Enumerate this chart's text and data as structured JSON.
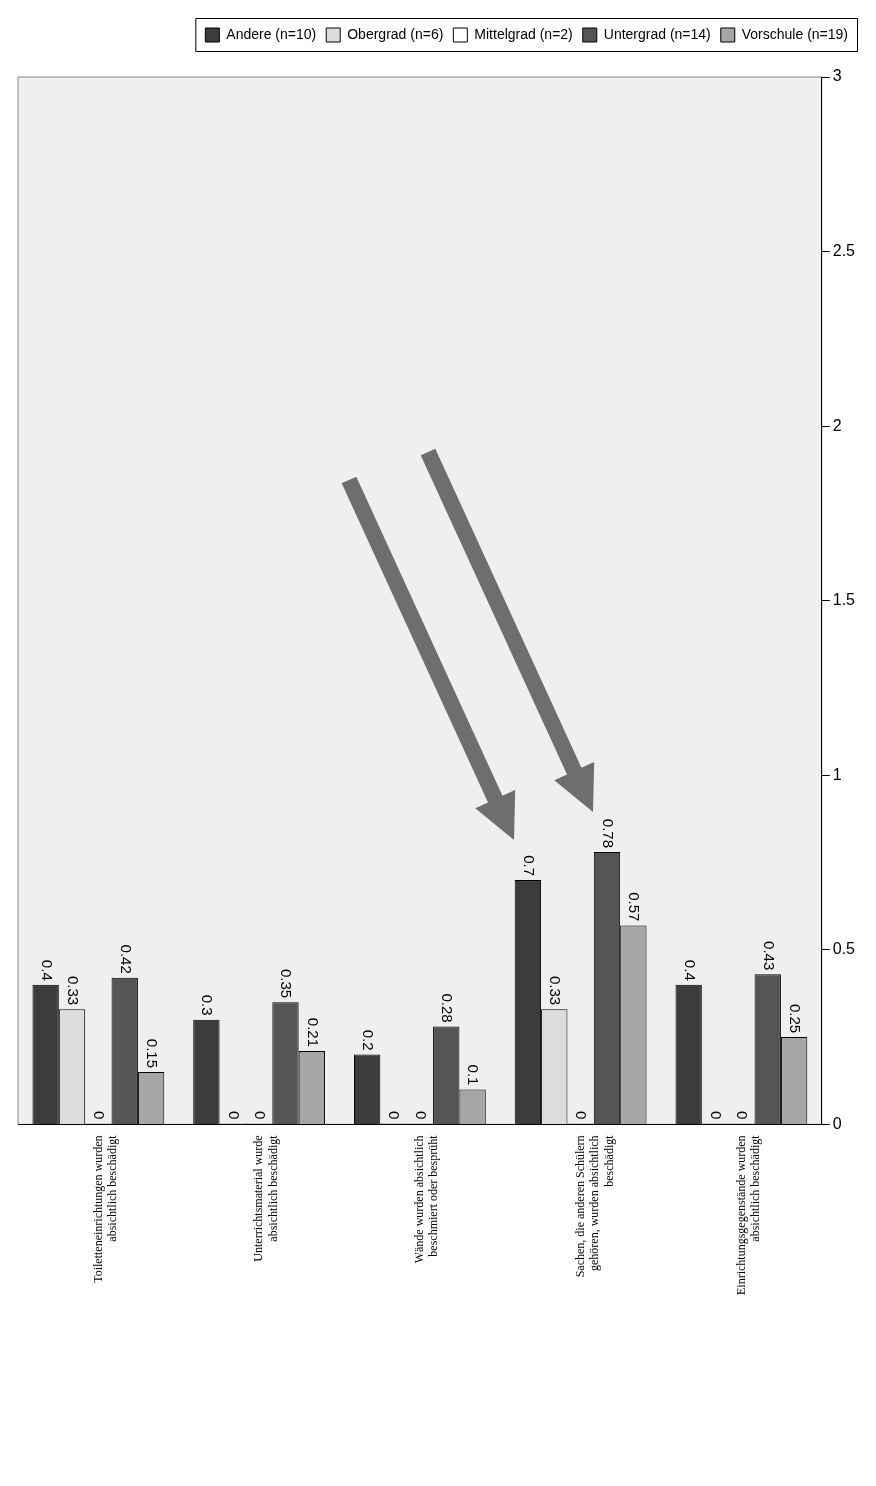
{
  "chart_data": {
    "type": "bar",
    "categories": [
      "Toiletteneinrichtungen wurden absichtlich beschädigt",
      "Unterrichtsmaterial wurde absichtlich beschädigt",
      "Wände wurden absichtlich beschmiert oder besprüht",
      "Sachen, die anderen Schülern gehören, wurden absichtlich beschädigt",
      "Einrichtungsgegenstände wurden absichtlich beschädigt"
    ],
    "series": [
      {
        "name": "Andere (n=10)",
        "color": "#3c3c3c",
        "values": [
          0.4,
          0.3,
          0.2,
          0.7,
          0.4
        ]
      },
      {
        "name": "Obergrad (n=6)",
        "color": "#dcdcdc",
        "values": [
          0.33,
          0,
          0,
          0.33,
          0
        ]
      },
      {
        "name": "Mittelgrad (n=2)",
        "color": "#ffffff",
        "values": [
          0,
          0,
          0,
          0,
          0
        ]
      },
      {
        "name": "Untergrad (n=14)",
        "color": "#555555",
        "values": [
          0.42,
          0.35,
          0.28,
          0.78,
          0.43
        ]
      },
      {
        "name": "Vorschule (n=19)",
        "color": "#a6a6a6",
        "values": [
          0.15,
          0.21,
          0.1,
          0.57,
          0.25
        ]
      }
    ],
    "ylim": [
      0,
      3
    ],
    "yticks": [
      0,
      0.5,
      1,
      1.5,
      2,
      2.5,
      3
    ],
    "data_labels": true,
    "legend": "top right"
  }
}
